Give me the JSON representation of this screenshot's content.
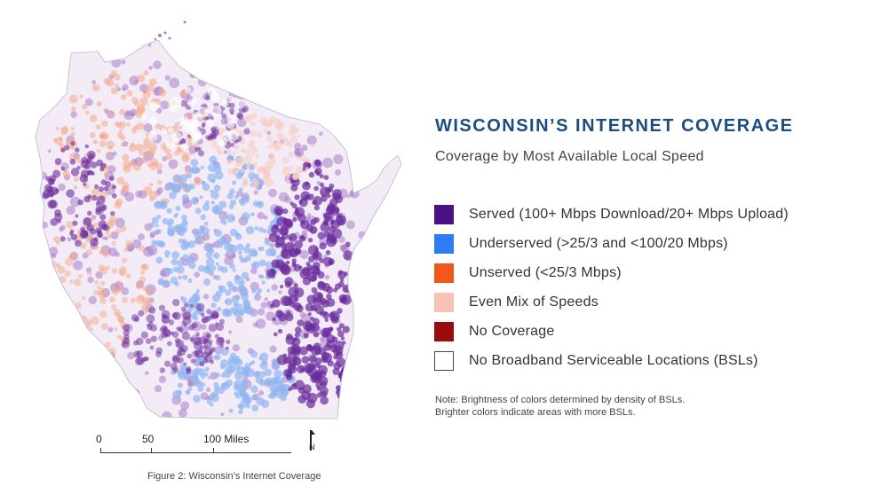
{
  "title": "WISCONSIN’S INTERNET COVERAGE",
  "subtitle": "Coverage by Most Available Local Speed",
  "legend": [
    {
      "label": "Served (100+ Mbps Download/20+ Mbps Upload)",
      "color": "#4b1286",
      "icon": "square-swatch"
    },
    {
      "label": "Underserved (>25/3 and <100/20 Mbps)",
      "color": "#2e7cf6",
      "icon": "square-swatch"
    },
    {
      "label": "Unserved (<25/3 Mbps)",
      "color": "#f2571b",
      "icon": "square-swatch"
    },
    {
      "label": "Even Mix of Speeds",
      "color": "#f7c3b8",
      "icon": "square-swatch"
    },
    {
      "label": "No Coverage",
      "color": "#9a0c0c",
      "icon": "square-swatch"
    },
    {
      "label": "No Broadband Serviceable Locations (BSLs)",
      "color": "#ffffff",
      "icon": "square-swatch-outline"
    }
  ],
  "note": {
    "line1": "Note: Brightness of colors determined by density of BSLs.",
    "line2": "Brighter colors indicate areas with more BSLs."
  },
  "scale": {
    "label_0": "0",
    "label_50": "50",
    "label_100": "100 Miles"
  },
  "north_arrow": {
    "icon": "north-arrow-icon",
    "letter": "N"
  },
  "caption": "Figure 2: Wisconsin’s Internet Coverage",
  "map": {
    "region": "Wisconsin",
    "colors": {
      "served_dark": "#6a2c9c",
      "served_light": "#a77fc8",
      "underserved": "#8fb7f2",
      "unserved": "#f4a98a",
      "mix": "#f6cfc4",
      "outline": "#d0d0d0"
    }
  }
}
